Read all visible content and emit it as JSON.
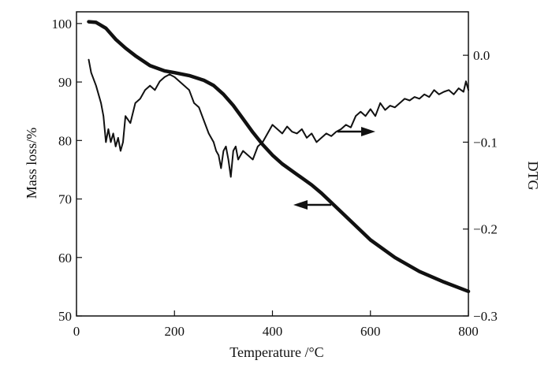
{
  "chart_data": {
    "type": "line",
    "xlabel": "Temperature /°C",
    "ylabel_left": "Mass loss/%",
    "ylabel_right": "DTG",
    "xlim": [
      0,
      800
    ],
    "ylim_left": [
      50,
      102
    ],
    "ylim_right": [
      -0.3,
      0.05
    ],
    "xticks": [
      "0",
      "200",
      "400",
      "600",
      "800"
    ],
    "yticks_left": [
      "50",
      "60",
      "70",
      "80",
      "90",
      "100"
    ],
    "yticks_right": [
      "0.0",
      "−0.1",
      "−0.2",
      "−0.3"
    ],
    "grid": false,
    "series": [
      {
        "axis": "left",
        "x": [
          25,
          40,
          60,
          80,
          100,
          120,
          150,
          180,
          200,
          230,
          260,
          280,
          300,
          320,
          340,
          360,
          380,
          400,
          420,
          450,
          480,
          500,
          520,
          550,
          600,
          650,
          700,
          750,
          800
        ],
        "y": [
          100.3,
          100.2,
          99.2,
          97.3,
          95.8,
          94.5,
          92.8,
          91.9,
          91.6,
          91.1,
          90.3,
          89.4,
          87.9,
          86.0,
          83.7,
          81.4,
          79.3,
          77.5,
          76.0,
          74.2,
          72.4,
          71.0,
          69.4,
          67.0,
          63.0,
          60.0,
          57.6,
          55.8,
          54.2
        ]
      },
      {
        "axis": "right",
        "x": [
          25,
          30,
          40,
          50,
          55,
          60,
          65,
          70,
          75,
          80,
          85,
          90,
          95,
          100,
          110,
          120,
          130,
          140,
          150,
          160,
          170,
          180,
          190,
          200,
          210,
          220,
          230,
          240,
          250,
          260,
          270,
          280,
          285,
          290,
          295,
          300,
          305,
          310,
          315,
          320,
          325,
          330,
          340,
          350,
          360,
          370,
          380,
          390,
          400,
          410,
          420,
          430,
          440,
          450,
          460,
          470,
          480,
          490,
          500,
          510,
          520,
          530,
          540,
          550,
          560,
          570,
          580,
          590,
          600,
          610,
          620,
          630,
          640,
          650,
          660,
          670,
          680,
          690,
          700,
          710,
          720,
          730,
          740,
          750,
          760,
          770,
          780,
          790,
          795,
          800
        ],
        "y": [
          -0.005,
          -0.02,
          -0.035,
          -0.055,
          -0.07,
          -0.1,
          -0.085,
          -0.1,
          -0.09,
          -0.105,
          -0.095,
          -0.11,
          -0.1,
          -0.07,
          -0.078,
          -0.055,
          -0.05,
          -0.04,
          -0.035,
          -0.04,
          -0.03,
          -0.025,
          -0.022,
          -0.025,
          -0.03,
          -0.035,
          -0.04,
          -0.055,
          -0.06,
          -0.075,
          -0.09,
          -0.1,
          -0.11,
          -0.115,
          -0.13,
          -0.11,
          -0.105,
          -0.12,
          -0.14,
          -0.11,
          -0.105,
          -0.12,
          -0.11,
          -0.115,
          -0.12,
          -0.105,
          -0.1,
          -0.09,
          -0.08,
          -0.085,
          -0.09,
          -0.082,
          -0.088,
          -0.09,
          -0.085,
          -0.095,
          -0.09,
          -0.1,
          -0.095,
          -0.09,
          -0.093,
          -0.088,
          -0.085,
          -0.08,
          -0.083,
          -0.07,
          -0.065,
          -0.07,
          -0.062,
          -0.07,
          -0.055,
          -0.063,
          -0.058,
          -0.06,
          -0.055,
          -0.05,
          -0.052,
          -0.048,
          -0.05,
          -0.045,
          -0.048,
          -0.04,
          -0.045,
          -0.042,
          -0.04,
          -0.045,
          -0.038,
          -0.042,
          -0.03,
          -0.04
        ]
      }
    ],
    "annotations": [
      {
        "arrow_direction": "left",
        "points_to": "mass-loss axis"
      },
      {
        "arrow_direction": "right",
        "points_to": "DTG axis"
      }
    ]
  }
}
